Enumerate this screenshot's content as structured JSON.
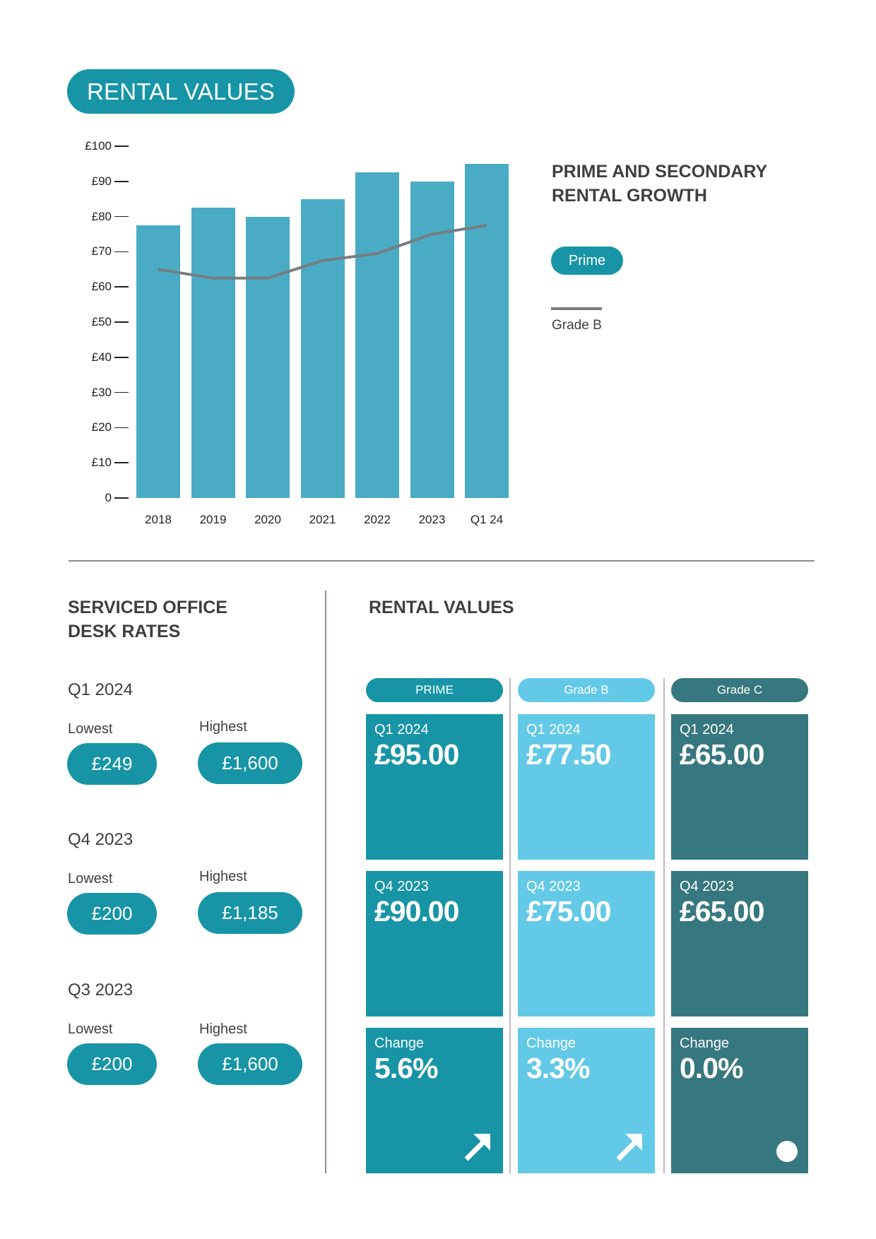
{
  "header": {
    "title": "RENTAL VALUES"
  },
  "chart_data": {
    "type": "bar",
    "title": "PRIME AND SECONDARY RENTAL GROWTH",
    "xlabel": "",
    "ylabel": "",
    "ylim": [
      0,
      100
    ],
    "yticks": [
      "0",
      "£10",
      "£20",
      "£30",
      "£40",
      "£50",
      "£60",
      "£70",
      "£80",
      "£90",
      "£100"
    ],
    "categories": [
      "2018",
      "2019",
      "2020",
      "2021",
      "2022",
      "2023",
      "Q1 24"
    ],
    "series": [
      {
        "name": "Prime",
        "kind": "bar",
        "color": "#49abc4",
        "values": [
          77.5,
          82.5,
          80,
          85,
          92.5,
          90,
          95
        ]
      },
      {
        "name": "Grade B",
        "kind": "line",
        "color": "#767d80",
        "values": [
          65,
          62.5,
          62.5,
          67.5,
          69.5,
          75,
          77.5
        ]
      }
    ],
    "legend": {
      "position": "right",
      "items": [
        "Prime",
        "Grade B"
      ]
    },
    "grid": false
  },
  "legend": {
    "title_line1": "PRIME AND SECONDARY",
    "title_line2": "RENTAL GROWTH",
    "prime_label": "Prime",
    "gradeb_label": "Grade B"
  },
  "desk_rates": {
    "title_line1": "SERVICED OFFICE",
    "title_line2": "DESK RATES",
    "lowest_label": "Lowest",
    "highest_label": "Highest",
    "periods": [
      {
        "period": "Q1 2024",
        "lowest": "£249",
        "highest": "£1,600"
      },
      {
        "period": "Q4 2023",
        "lowest": "£200",
        "highest": "£1,185"
      },
      {
        "period": "Q3 2023",
        "lowest": "£200",
        "highest": "£1,600"
      }
    ]
  },
  "rental_values": {
    "title": "RENTAL VALUES",
    "columns": [
      {
        "header": "PRIME",
        "color": "#1795a6",
        "q1_label": "Q1 2024",
        "q1_value": "£95.00",
        "q4_label": "Q4 2023",
        "q4_value": "£90.00",
        "change_label": "Change",
        "change_value": "5.6%",
        "trend_icon": "arrow-up-right"
      },
      {
        "header": "Grade B",
        "color": "#62c9e6",
        "q1_label": "Q1 2024",
        "q1_value": "£77.50",
        "q4_label": "Q4 2023",
        "q4_value": "£75.00",
        "change_label": "Change",
        "change_value": "3.3%",
        "trend_icon": "arrow-up-right"
      },
      {
        "header": "Grade C",
        "color": "#37777f",
        "q1_label": "Q1 2024",
        "q1_value": "£65.00",
        "q4_label": "Q4 2023",
        "q4_value": "£65.00",
        "change_label": "Change",
        "change_value": "0.0%",
        "trend_icon": "dot-neutral"
      }
    ]
  }
}
